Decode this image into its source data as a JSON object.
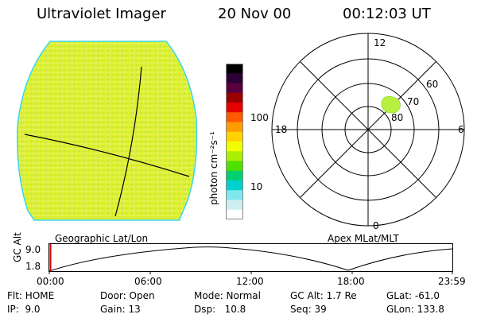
{
  "header": {
    "instrument": "Ultraviolet Imager",
    "date": "20 Nov 00",
    "time": "00:12:03 UT"
  },
  "geo_panel": {
    "label": "Geographic Lat/Lon",
    "fill_color": "#dcf032",
    "edge_color": "#38d8f0"
  },
  "colorbar": {
    "unit_label": "photon cm⁻²s⁻¹",
    "ticks": [
      "100",
      "10"
    ],
    "scale": "log",
    "colors": [
      "#000000",
      "#2b0036",
      "#5a003e",
      "#9a0000",
      "#e60000",
      "#ff5a00",
      "#ff9c00",
      "#ffd200",
      "#f2ff00",
      "#a8f000",
      "#50e000",
      "#00d070",
      "#00d0d0",
      "#7fe8ec",
      "#cfeff0",
      "#ffffff"
    ]
  },
  "polar_panel": {
    "label": "Apex MLat/MLT",
    "mlt_labels": {
      "top": "12",
      "left": "18",
      "right": "6",
      "bottom": "0"
    },
    "lat_labels": [
      "60",
      "70",
      "80"
    ],
    "aurora_color": "#b8f040"
  },
  "timeline": {
    "axis_label": "GC Alt",
    "y_ticks": [
      "9.0",
      "1.8"
    ],
    "x_ticks": [
      "00:00",
      "06:00",
      "12:00",
      "18:00",
      "23:59"
    ],
    "cursor_color": "#e00000"
  },
  "status": {
    "col1": {
      "r1": "Flt: HOME",
      "r2": "IP:  9.0"
    },
    "col2": {
      "r1": "Door: Open",
      "r2": "Gain: 13"
    },
    "col3": {
      "r1": "Mode: Normal",
      "r2": "Dsp:   10.8"
    },
    "col4": {
      "r1": "GC Alt: 1.7 Re",
      "r2": "Seq: 39"
    },
    "col5": {
      "r1": "GLat: -61.0",
      "r2": "GLon: 133.8"
    }
  }
}
